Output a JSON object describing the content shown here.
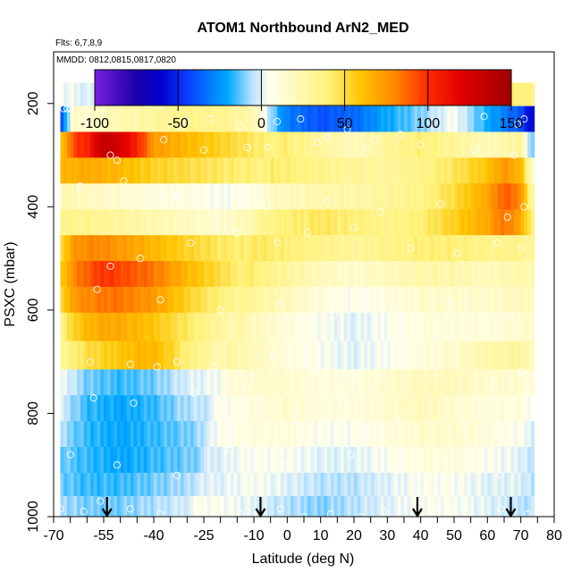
{
  "chart_data": {
    "type": "heatmap",
    "title": "ATOM1 Northbound ArN2_MED",
    "subtitle_flights": "Flts: 6,7,8,9",
    "subtitle_dates": "MMDD: 0812,0815,0817,0820",
    "xlabel": "Latitude (deg N)",
    "ylabel": "PSXC (mbar)",
    "xlim": [
      -70,
      80
    ],
    "ylim": [
      1000,
      100
    ],
    "y_reversed": true,
    "x_tick_labels": [
      "-70",
      "-55",
      "-40",
      "-25",
      "-10",
      "0",
      "10",
      "20",
      "30",
      "40",
      "50",
      "60",
      "70",
      "80"
    ],
    "x_ticks": [
      -70,
      -55,
      -40,
      -25,
      -10,
      0,
      10,
      20,
      30,
      40,
      50,
      60,
      70,
      80
    ],
    "x_minor_ticks": [
      -65,
      -60,
      -50,
      -45,
      -35,
      -30,
      -20,
      -15,
      -5,
      5,
      15,
      25,
      35,
      45,
      55,
      65,
      75
    ],
    "y_ticks": [
      200,
      400,
      600,
      800,
      1000
    ],
    "y_tick_labels": [
      "200",
      "400",
      "600",
      "800",
      "1000"
    ],
    "colorbar": {
      "min": -100,
      "max": 150,
      "ticks": [
        -100,
        -50,
        0,
        50,
        100,
        150
      ],
      "tick_labels": [
        "-100",
        "-50",
        "0",
        "50",
        "100",
        "150"
      ],
      "colors": [
        "#7a1fe0",
        "#1a00a8",
        "#0000cc",
        "#0a3cff",
        "#00aaff",
        "#bfe3ff",
        "#ffffee",
        "#fff27a",
        "#ffc400",
        "#ff8800",
        "#ff2a00",
        "#e00000",
        "#a00000"
      ]
    },
    "flight_markers_lat": [
      -54,
      -8,
      39,
      67
    ],
    "layers": [
      {
        "p": 180,
        "lat": [
          -68,
          -60,
          -50,
          -40,
          -30,
          -20,
          -10,
          0,
          10,
          20,
          30,
          40,
          50,
          60,
          70,
          75
        ],
        "v": [
          10,
          5,
          10,
          20,
          30,
          35,
          45,
          45,
          45,
          40,
          45,
          45,
          40,
          35,
          40,
          35
        ]
      },
      {
        "p": 230,
        "lat": [
          -68,
          -64,
          -60,
          -50,
          -40,
          -30,
          -20,
          -10,
          0,
          10,
          20,
          30,
          40,
          50,
          60,
          70,
          73
        ],
        "v": [
          -40,
          25,
          20,
          30,
          35,
          40,
          40,
          30,
          -30,
          -40,
          -35,
          -20,
          -10,
          5,
          -20,
          -40,
          -60
        ]
      },
      {
        "p": 280,
        "lat": [
          -68,
          -64,
          -60,
          -55,
          -50,
          -45,
          -40,
          -30,
          -20,
          -10,
          0,
          10,
          20,
          30,
          40,
          50,
          60,
          70,
          73
        ],
        "v": [
          60,
          100,
          110,
          140,
          130,
          110,
          80,
          70,
          60,
          50,
          40,
          30,
          20,
          30,
          40,
          30,
          20,
          30,
          -10
        ]
      },
      {
        "p": 330,
        "lat": [
          -68,
          -60,
          -50,
          -40,
          -30,
          -20,
          -10,
          0,
          10,
          20,
          30,
          40,
          50,
          60,
          65,
          70,
          73
        ],
        "v": [
          70,
          75,
          70,
          60,
          55,
          50,
          45,
          40,
          35,
          30,
          30,
          35,
          45,
          60,
          75,
          65,
          20
        ]
      },
      {
        "p": 380,
        "lat": [
          -68,
          -60,
          -50,
          -40,
          -30,
          -20,
          -10,
          0,
          10,
          20,
          30,
          40,
          50,
          60,
          65,
          70,
          73
        ],
        "v": [
          30,
          25,
          20,
          15,
          15,
          10,
          15,
          20,
          25,
          25,
          30,
          35,
          50,
          70,
          90,
          80,
          30
        ]
      },
      {
        "p": 430,
        "lat": [
          -68,
          -60,
          -50,
          -40,
          -30,
          -20,
          -10,
          0,
          10,
          20,
          30,
          40,
          50,
          60,
          65,
          70,
          73
        ],
        "v": [
          40,
          40,
          35,
          30,
          25,
          20,
          30,
          40,
          45,
          40,
          35,
          40,
          55,
          70,
          85,
          70,
          40
        ]
      },
      {
        "p": 480,
        "lat": [
          -68,
          -64,
          -60,
          -55,
          -50,
          -45,
          -40,
          -30,
          -20,
          -10,
          0,
          10,
          20,
          30,
          40,
          50,
          60,
          70,
          73
        ],
        "v": [
          55,
          80,
          85,
          85,
          80,
          75,
          70,
          60,
          50,
          45,
          40,
          35,
          30,
          35,
          40,
          40,
          35,
          35,
          30
        ]
      },
      {
        "p": 530,
        "lat": [
          -68,
          -64,
          -60,
          -55,
          -50,
          -45,
          -40,
          -30,
          -20,
          -10,
          0,
          10,
          20,
          30,
          40,
          50,
          60,
          70,
          73
        ],
        "v": [
          60,
          85,
          95,
          105,
          100,
          95,
          90,
          70,
          55,
          40,
          30,
          20,
          15,
          20,
          25,
          25,
          20,
          25,
          25
        ]
      },
      {
        "p": 580,
        "lat": [
          -68,
          -64,
          -60,
          -55,
          -50,
          -45,
          -40,
          -30,
          -20,
          -10,
          0,
          10,
          20,
          30,
          40,
          50,
          60,
          70,
          73
        ],
        "v": [
          55,
          80,
          85,
          90,
          90,
          85,
          80,
          60,
          45,
          30,
          20,
          10,
          5,
          10,
          15,
          15,
          15,
          20,
          20
        ]
      },
      {
        "p": 630,
        "lat": [
          -68,
          -64,
          -60,
          -55,
          -50,
          -45,
          -40,
          -30,
          -20,
          -10,
          0,
          10,
          20,
          30,
          40,
          50,
          60,
          70,
          73
        ],
        "v": [
          40,
          60,
          70,
          75,
          75,
          70,
          65,
          50,
          35,
          20,
          10,
          5,
          0,
          5,
          10,
          10,
          10,
          15,
          15
        ]
      },
      {
        "p": 690,
        "lat": [
          -68,
          -64,
          -60,
          -55,
          -50,
          -45,
          -40,
          -35,
          -30,
          -20,
          -10,
          0,
          10,
          20,
          30,
          40,
          50,
          60,
          70,
          73
        ],
        "v": [
          35,
          45,
          55,
          60,
          65,
          70,
          70,
          60,
          45,
          30,
          20,
          10,
          5,
          0,
          5,
          10,
          15,
          25,
          30,
          20
        ]
      },
      {
        "p": 740,
        "lat": [
          -68,
          -60,
          -50,
          -40,
          -30,
          -20,
          -10,
          0,
          10,
          20,
          30,
          40,
          50,
          60,
          70,
          73
        ],
        "v": [
          10,
          -5,
          -10,
          -5,
          5,
          10,
          15,
          15,
          10,
          10,
          15,
          20,
          20,
          15,
          15,
          10
        ]
      },
      {
        "p": 790,
        "lat": [
          -68,
          -60,
          -50,
          -40,
          -30,
          -20,
          -10,
          0,
          10,
          20,
          30,
          40,
          50,
          60,
          70,
          73
        ],
        "v": [
          5,
          -10,
          -15,
          -10,
          0,
          5,
          10,
          15,
          10,
          10,
          15,
          20,
          15,
          10,
          10,
          5
        ]
      },
      {
        "p": 840,
        "lat": [
          -68,
          -60,
          -50,
          -40,
          -30,
          -20,
          -10,
          0,
          10,
          20,
          30,
          40,
          50,
          60,
          70,
          73
        ],
        "v": [
          0,
          -10,
          -15,
          -10,
          -5,
          5,
          10,
          10,
          5,
          5,
          10,
          15,
          15,
          10,
          5,
          0
        ]
      },
      {
        "p": 890,
        "lat": [
          -68,
          -60,
          -50,
          -40,
          -30,
          -20,
          -10,
          0,
          10,
          20,
          30,
          40,
          50,
          60,
          70,
          73
        ],
        "v": [
          -5,
          -10,
          -15,
          -10,
          -5,
          0,
          5,
          5,
          0,
          0,
          5,
          10,
          10,
          5,
          0,
          -5
        ]
      },
      {
        "p": 940,
        "lat": [
          -68,
          -60,
          -50,
          -40,
          -30,
          -20,
          -10,
          0,
          10,
          20,
          30,
          40,
          50,
          60,
          70,
          73
        ],
        "v": [
          -5,
          -10,
          -10,
          -5,
          0,
          0,
          5,
          0,
          -5,
          -5,
          0,
          5,
          5,
          0,
          0,
          -5
        ]
      },
      {
        "p": 980,
        "lat": [
          -68,
          -60,
          -50,
          -40,
          -30,
          -20,
          -10,
          0,
          10,
          20,
          30,
          40,
          50,
          60,
          70,
          73
        ],
        "v": [
          0,
          -5,
          -5,
          0,
          5,
          5,
          0,
          -5,
          -10,
          -5,
          0,
          5,
          5,
          0,
          -5,
          -5
        ]
      }
    ],
    "points": [
      [
        -67,
        210
      ],
      [
        -66,
        210
      ],
      [
        -65,
        210
      ],
      [
        -42,
        200
      ],
      [
        -38,
        205
      ],
      [
        -32,
        245
      ],
      [
        -30,
        235
      ],
      [
        -23,
        230
      ],
      [
        -14,
        245
      ],
      [
        -11,
        200
      ],
      [
        -6,
        285
      ],
      [
        -3,
        235
      ],
      [
        4,
        230
      ],
      [
        12,
        265
      ],
      [
        18,
        250
      ],
      [
        26,
        270
      ],
      [
        34,
        260
      ],
      [
        43,
        235
      ],
      [
        59,
        225
      ],
      [
        69,
        240
      ],
      [
        71,
        230
      ],
      [
        80,
        230
      ],
      [
        -53,
        300
      ],
      [
        -51,
        310
      ],
      [
        -37,
        270
      ],
      [
        -25,
        290
      ],
      [
        -12,
        285
      ],
      [
        9,
        275
      ],
      [
        24,
        285
      ],
      [
        40,
        280
      ],
      [
        56,
        290
      ],
      [
        68,
        300
      ],
      [
        -62,
        360
      ],
      [
        -49,
        350
      ],
      [
        -33,
        380
      ],
      [
        -16,
        370
      ],
      [
        -6,
        400
      ],
      [
        12,
        390
      ],
      [
        28,
        410
      ],
      [
        46,
        395
      ],
      [
        66,
        420
      ],
      [
        71,
        400
      ],
      [
        -53,
        515
      ],
      [
        -44,
        500
      ],
      [
        -29,
        470
      ],
      [
        -15,
        450
      ],
      [
        -3,
        470
      ],
      [
        6,
        450
      ],
      [
        20,
        440
      ],
      [
        37,
        480
      ],
      [
        51,
        490
      ],
      [
        63,
        470
      ],
      [
        70,
        480
      ],
      [
        -57,
        560
      ],
      [
        -38,
        580
      ],
      [
        -20,
        600
      ],
      [
        -2,
        590
      ],
      [
        14,
        610
      ],
      [
        32,
        600
      ],
      [
        49,
        590
      ],
      [
        67,
        610
      ],
      [
        -59,
        700
      ],
      [
        -47,
        705
      ],
      [
        -39,
        710
      ],
      [
        -33,
        700
      ],
      [
        -22,
        710
      ],
      [
        -11,
        730
      ],
      [
        -4,
        690
      ],
      [
        8,
        720
      ],
      [
        19,
        725
      ],
      [
        28,
        730
      ],
      [
        44,
        730
      ],
      [
        62,
        745
      ],
      [
        70,
        720
      ],
      [
        -58,
        770
      ],
      [
        -46,
        780
      ],
      [
        -28,
        760
      ],
      [
        -12,
        750
      ],
      [
        2,
        800
      ],
      [
        16,
        770
      ],
      [
        34,
        810
      ],
      [
        53,
        820
      ],
      [
        72,
        760
      ],
      [
        -65,
        880
      ],
      [
        -51,
        900
      ],
      [
        -33,
        920
      ],
      [
        -17,
        870
      ],
      [
        -1,
        900
      ],
      [
        19,
        880
      ],
      [
        33,
        910
      ],
      [
        47,
        900
      ],
      [
        64,
        920
      ],
      [
        -68,
        985
      ],
      [
        -61,
        990
      ],
      [
        -56,
        970
      ],
      [
        -47,
        985
      ],
      [
        -38,
        995
      ],
      [
        -25,
        985
      ],
      [
        -14,
        995
      ],
      [
        -9,
        1000
      ],
      [
        -2,
        985
      ],
      [
        5,
        1000
      ],
      [
        13,
        995
      ],
      [
        22,
        1000
      ],
      [
        29,
        990
      ],
      [
        38,
        1000
      ],
      [
        45,
        985
      ],
      [
        54,
        995
      ],
      [
        64,
        985
      ],
      [
        72,
        995
      ],
      [
        77,
        980
      ]
    ]
  }
}
